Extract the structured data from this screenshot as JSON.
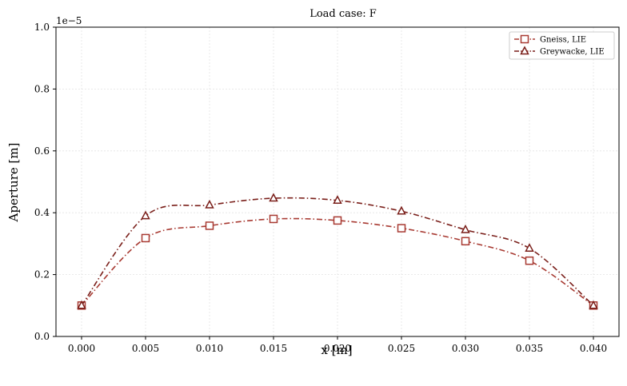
{
  "chart_data": {
    "type": "line",
    "title": "Load case: F",
    "xlabel": "x [m]",
    "ylabel": "Aperture [m]",
    "y_offset_label": "1e−5",
    "xlim": [
      -0.002,
      0.042
    ],
    "ylim": [
      0,
      1e-05
    ],
    "x_ticks": [
      0.0,
      0.005,
      0.01,
      0.015,
      0.02,
      0.025,
      0.03,
      0.035,
      0.04
    ],
    "x_tick_labels": [
      "0.000",
      "0.005",
      "0.010",
      "0.015",
      "0.020",
      "0.025",
      "0.030",
      "0.035",
      "0.040"
    ],
    "y_ticks": [
      0,
      2e-06,
      4e-06,
      6e-06,
      8e-06,
      1e-05
    ],
    "y_tick_labels": [
      "0.0",
      "0.2",
      "0.4",
      "0.6",
      "0.8",
      "1.0"
    ],
    "grid": true,
    "legend_position": "top-right",
    "x": [
      0.0,
      0.005,
      0.01,
      0.015,
      0.02,
      0.025,
      0.03,
      0.035,
      0.04
    ],
    "series": [
      {
        "name": "Gneiss, LIE",
        "marker": "square",
        "color": "#a83a32",
        "values": [
          1e-06,
          3.18e-06,
          3.58e-06,
          3.8e-06,
          3.75e-06,
          3.5e-06,
          3.08e-06,
          2.45e-06,
          1e-06
        ]
      },
      {
        "name": "Greywacke, LIE",
        "marker": "triangle",
        "color": "#7a1f1a",
        "values": [
          1e-06,
          3.9e-06,
          4.25e-06,
          4.47e-06,
          4.4e-06,
          4.05e-06,
          3.45e-06,
          2.85e-06,
          1e-06
        ]
      }
    ]
  }
}
